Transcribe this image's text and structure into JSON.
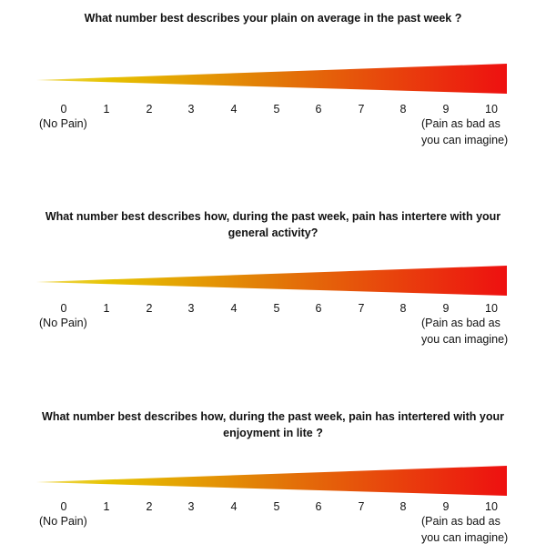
{
  "colors": {
    "start": "#e6c300",
    "mid": "#e27a08",
    "end": "#ee1010"
  },
  "scales": [
    {
      "question_lines": [
        "What number best describes your plain on average in the past week ?"
      ],
      "numbers": [
        "0",
        "1",
        "2",
        "3",
        "4",
        "5",
        "6",
        "7",
        "8",
        "9",
        "10"
      ],
      "min_label": "(No Pain)",
      "max_label_lines": [
        "(Pain as bad as",
        "you can imagine)"
      ]
    },
    {
      "question_lines": [
        "What number best describes how, during the past week, pain has intertere with your",
        "general activity?"
      ],
      "numbers": [
        "0",
        "1",
        "2",
        "3",
        "4",
        "5",
        "6",
        "7",
        "8",
        "9",
        "10"
      ],
      "min_label": "(No Pain)",
      "max_label_lines": [
        "(Pain as bad as",
        "you can imagine)"
      ]
    },
    {
      "question_lines": [
        "What number best describes how, during the past week, pain has intertered with your",
        "enjoyment in lite ?"
      ],
      "numbers": [
        "0",
        "1",
        "2",
        "3",
        "4",
        "5",
        "6",
        "7",
        "8",
        "9",
        "10"
      ],
      "min_label": "(No Pain)",
      "max_label_lines": [
        "(Pain as bad as",
        "you can imagine)"
      ]
    }
  ]
}
